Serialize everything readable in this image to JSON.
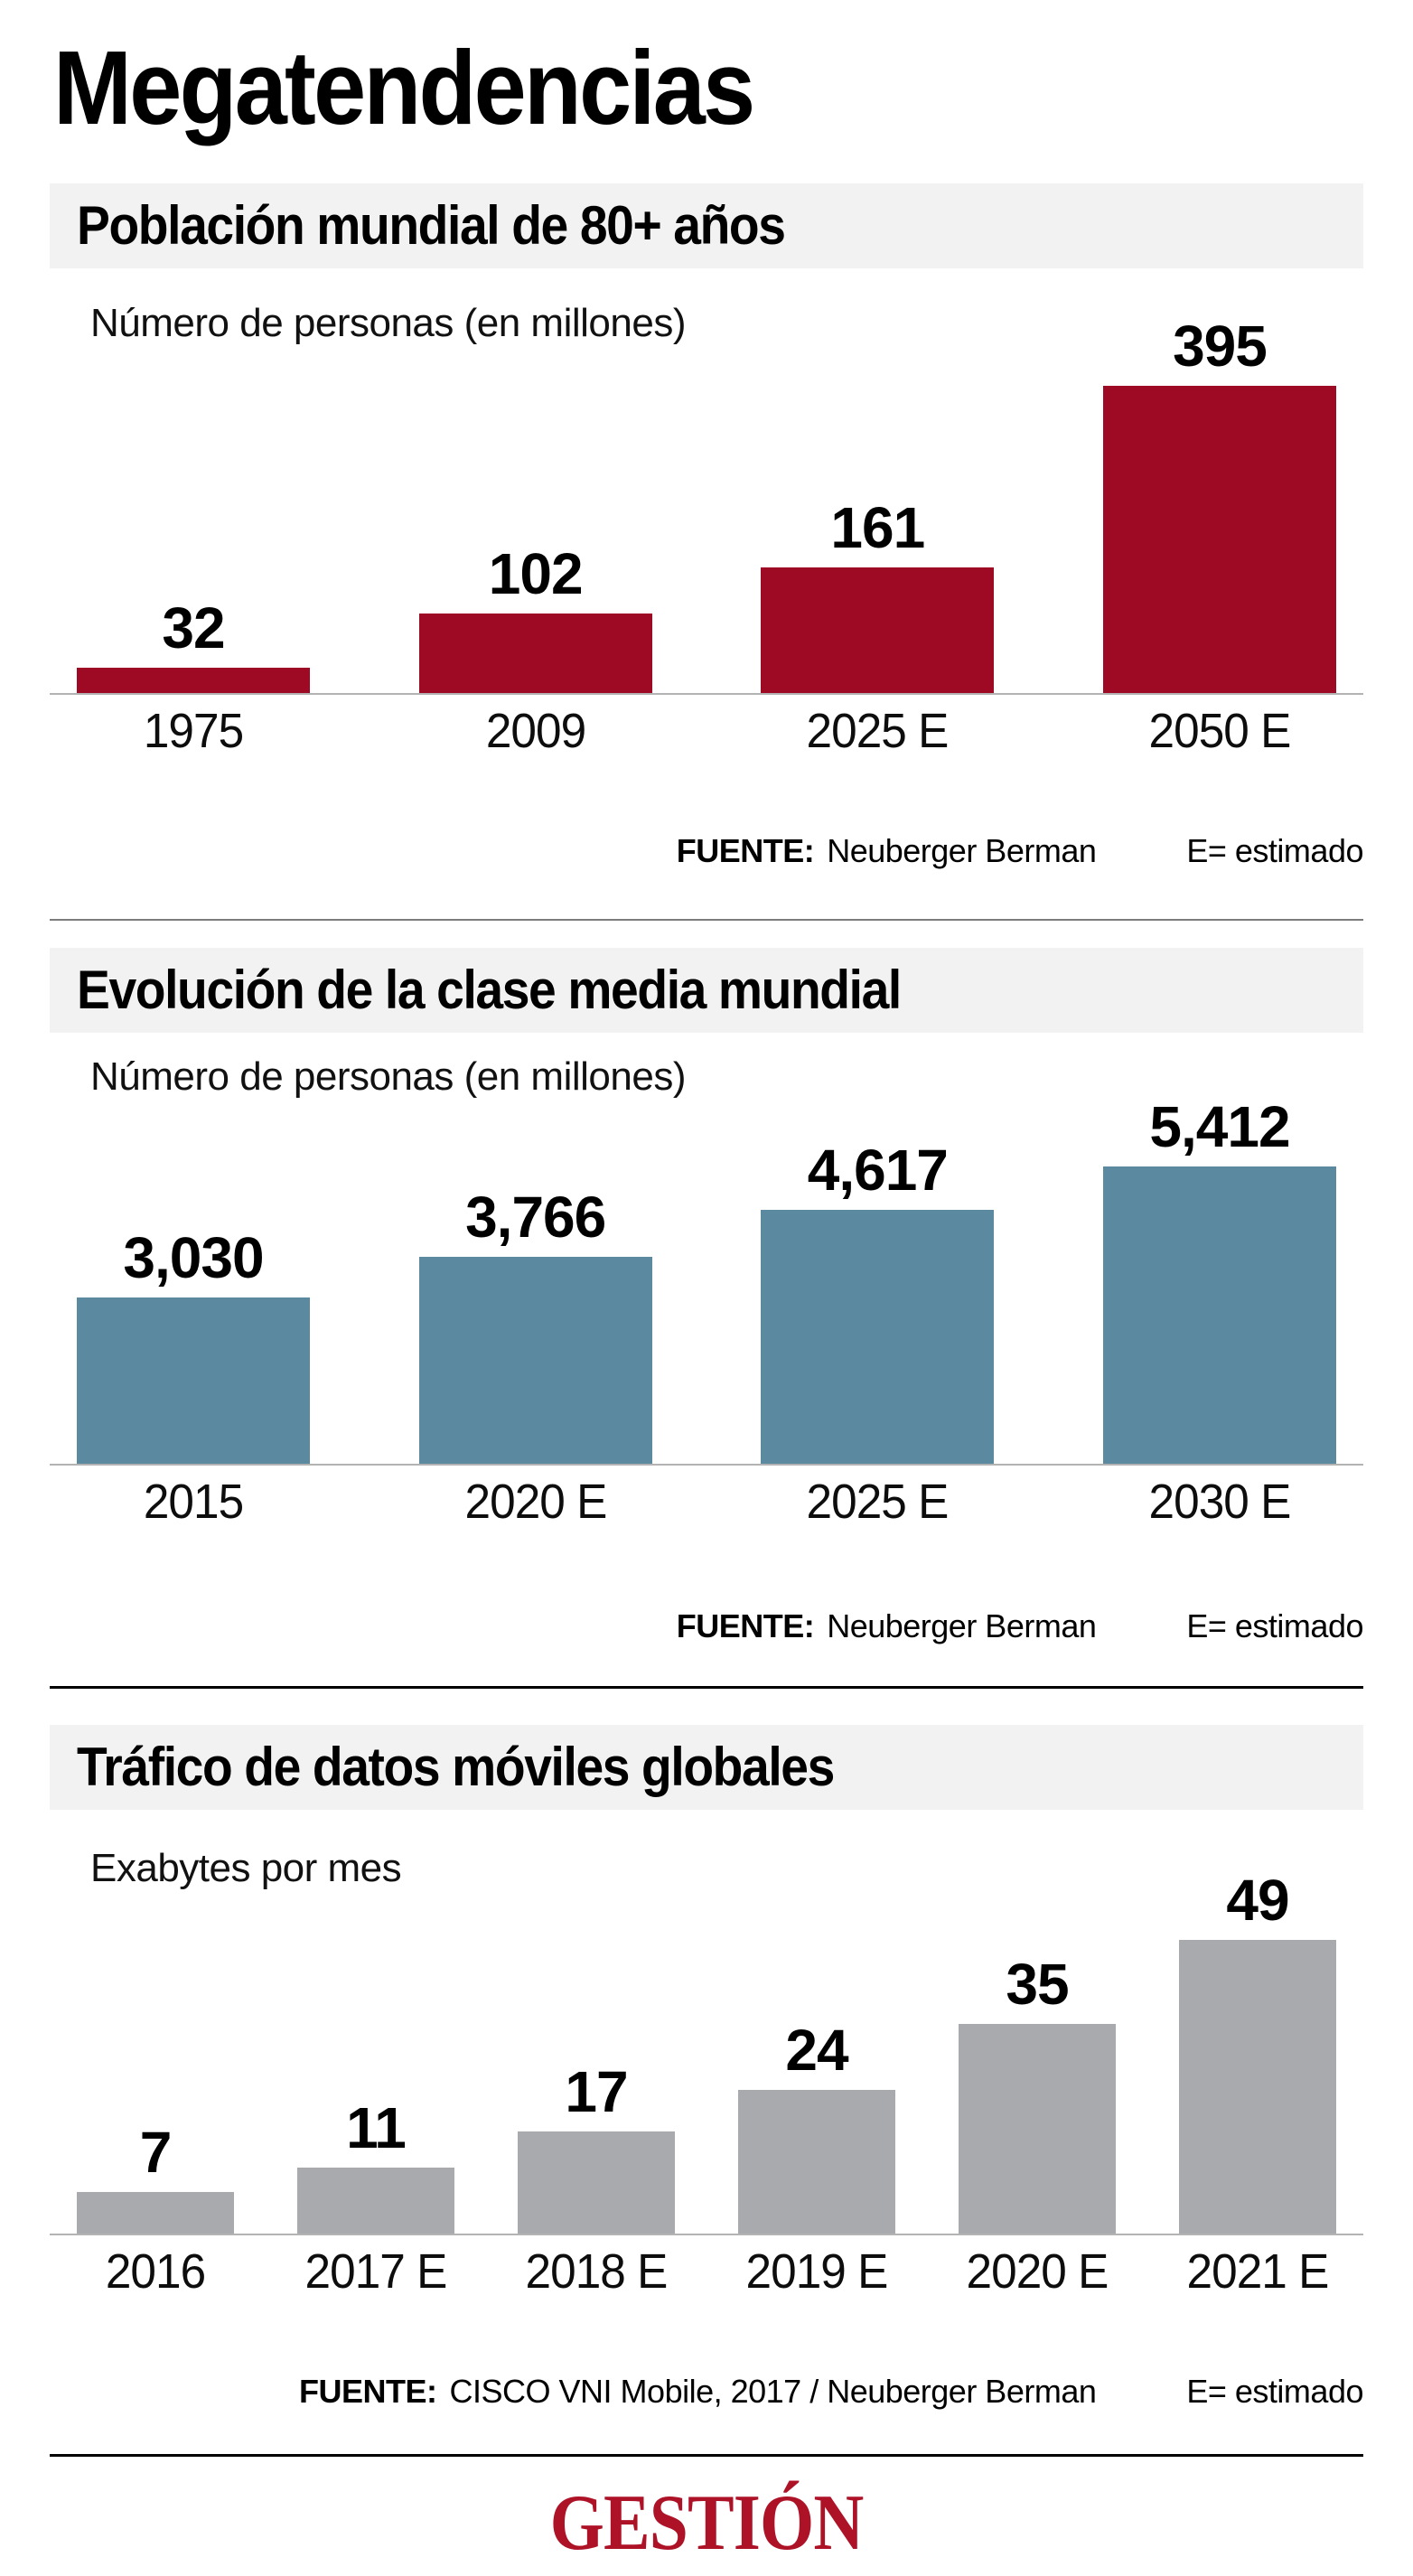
{
  "page": {
    "title": "Megatendencias",
    "source_label": "FUENTE:",
    "estimated_note": "E= estimado",
    "logo_text": "GESTIÓN",
    "colors": {
      "logo_red": "#AE1227",
      "header_bg": "#F2F2F2",
      "chart1_red": "#9E0A23",
      "chart2_blue": "#5A89A0",
      "chart3_gray": "#A8AAAD"
    }
  },
  "chart_data": [
    {
      "type": "bar",
      "title": "Población mundial de 80+ años",
      "subtitle": "Número de personas (en millones)",
      "ylabel": "Número de personas (en millones)",
      "xlabel": "",
      "categories": [
        "1975",
        "2009",
        "2025 E",
        "2050 E"
      ],
      "values": [
        32,
        102,
        161,
        395
      ],
      "value_labels": [
        "32",
        "102",
        "161",
        "395"
      ],
      "ylim": [
        0,
        395
      ],
      "grid": false,
      "legend": false,
      "bar_color": "#9E0A23",
      "source": "Neuberger Berman"
    },
    {
      "type": "bar",
      "title": "Evolución de la clase media mundial",
      "subtitle": "Número de personas (en millones)",
      "ylabel": "Número de personas (en millones)",
      "xlabel": "",
      "categories": [
        "2015",
        "2020 E",
        "2025 E",
        "2030 E"
      ],
      "values": [
        3030,
        3766,
        4617,
        5412
      ],
      "value_labels": [
        "3,030",
        "3,766",
        "4,617",
        "5,412"
      ],
      "ylim": [
        0,
        5412
      ],
      "grid": false,
      "legend": false,
      "bar_color": "#5A89A0",
      "source": "Neuberger Berman"
    },
    {
      "type": "bar",
      "title": "Tráfico de datos móviles globales",
      "subtitle": "Exabytes por mes",
      "ylabel": "Exabytes por mes",
      "xlabel": "",
      "categories": [
        "2016",
        "2017 E",
        "2018 E",
        "2019 E",
        "2020 E",
        "2021 E"
      ],
      "values": [
        7,
        11,
        17,
        24,
        35,
        49
      ],
      "value_labels": [
        "7",
        "11",
        "17",
        "24",
        "35",
        "49"
      ],
      "ylim": [
        0,
        49
      ],
      "grid": false,
      "legend": false,
      "bar_color": "#A8AAAD",
      "source": "CISCO VNI Mobile, 2017 / Neuberger Berman"
    }
  ]
}
